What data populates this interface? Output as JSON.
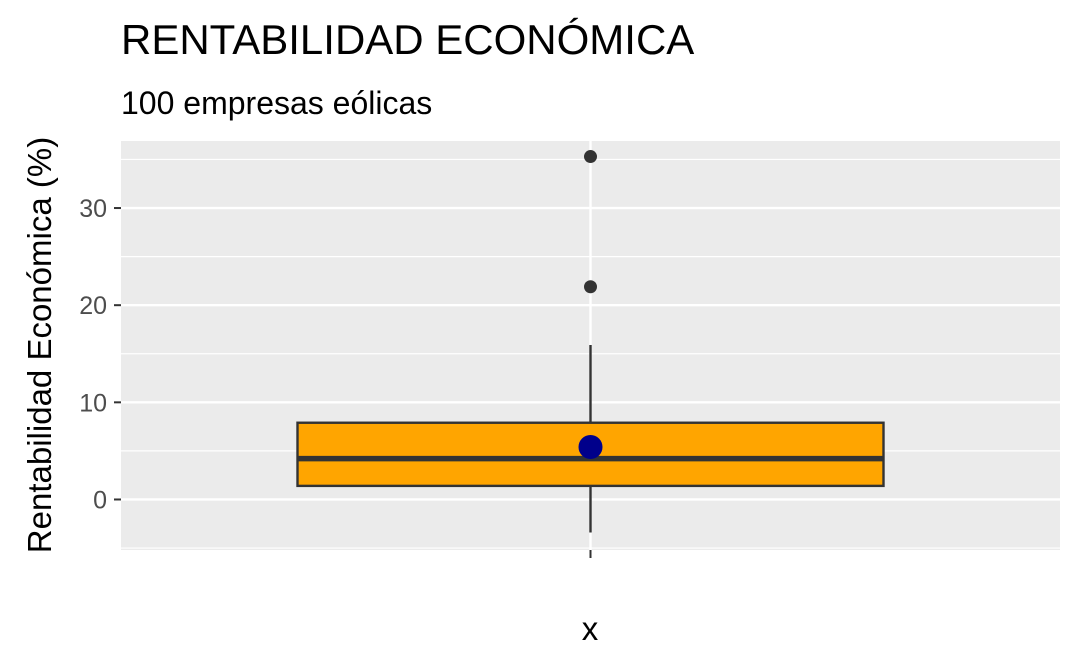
{
  "chart_data": {
    "type": "boxplot",
    "title": "RENTABILIDAD ECONÓMICA",
    "subtitle": "100 empresas eólicas",
    "xlabel": "x",
    "ylabel": "Rentabilidad Económica (%)",
    "ylim": [
      -5.2,
      36.9
    ],
    "yticks": [
      0,
      10,
      20,
      30
    ],
    "ytick_labels": [
      "0",
      "10",
      "20",
      "30"
    ],
    "grid": true,
    "box": {
      "q1": 1.4,
      "median": 4.2,
      "q3": 7.9,
      "whisker_low": -3.4,
      "whisker_high": 15.9,
      "mean": 5.4,
      "outliers": [
        21.9,
        35.3
      ]
    },
    "colors": {
      "panel_background": "#ebebeb",
      "grid": "#ffffff",
      "box_fill": "#ffa500",
      "box_line": "#333333",
      "mean_point": "#00008b",
      "outlier_point": "#333333"
    }
  }
}
